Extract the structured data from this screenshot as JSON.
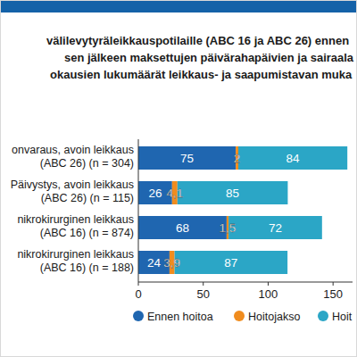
{
  "chart_data": {
    "type": "bar",
    "orientation": "horizontal",
    "stacked": true,
    "data_labels": true,
    "grid": false,
    "legend": "bottom",
    "title": "välilevytyräleikkauspotilaille (ABC 16 ja ABC 26) ennen\nsen jälkeen maksettujen päivärahapäivien ja sairaala\nokausien lukumäärät leikkaus- ja saapumistavan muka",
    "categories": [
      "onvaraus, avoin leikkaus\n(ABC 26) (n = 304)",
      "Päivystys, avoin leikkaus\n(ABC 26) (n = 115)",
      "nikrokirurginen leikkaus\n(ABC 16) (n = 874)",
      "nikrokirurginen leikkaus\n(ABC 16) (n = 188)"
    ],
    "series": [
      {
        "name": "Ennen hoitoa",
        "color": "#1f66b0",
        "values": [
          75,
          26,
          68,
          24
        ]
      },
      {
        "name": "Hoitojakso",
        "color": "#f08c1e",
        "values": [
          2,
          4.1,
          1.5,
          3.9
        ],
        "value_labels": [
          "2",
          "4,1",
          "1,5",
          "3,9"
        ]
      },
      {
        "name": "Hoit",
        "color": "#2ba6c6",
        "values": [
          84,
          85,
          72,
          87
        ]
      }
    ],
    "xlim": [
      0,
      165
    ],
    "xticks": [
      0,
      50,
      100,
      150
    ]
  }
}
